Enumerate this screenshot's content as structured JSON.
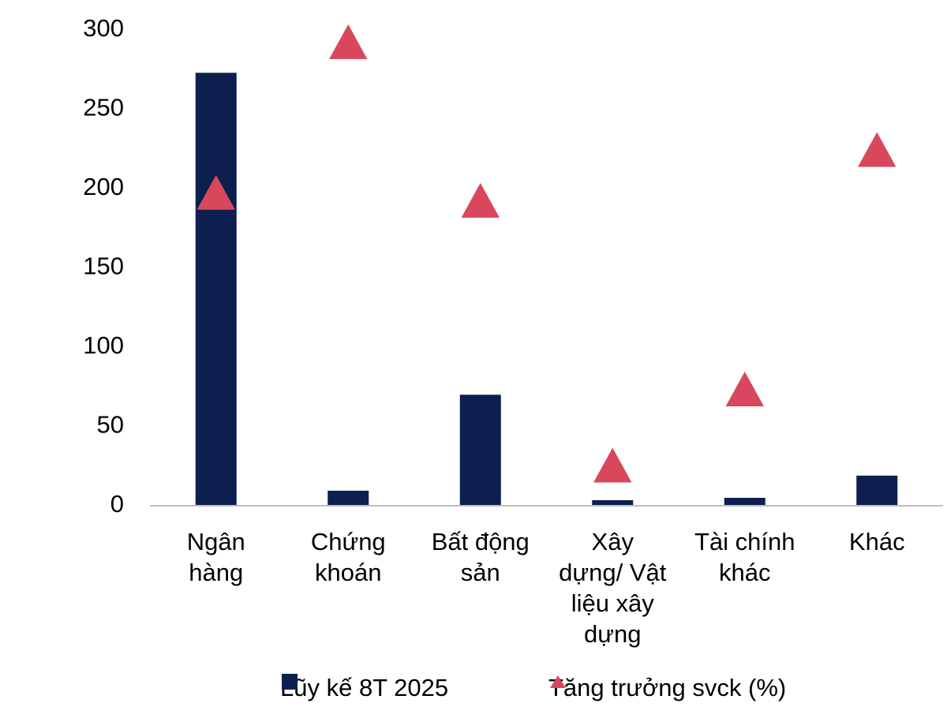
{
  "chart_data": {
    "type": "bar",
    "categories": [
      "Ngân hàng",
      "Chứng khoán",
      "Bất động sản",
      "Xây dựng/ Vật liệu xây dựng",
      "Tài chính khác",
      "Khác"
    ],
    "series": [
      {
        "name": "Lũy kế 8T 2025",
        "type": "bar",
        "color": "#0c1f4e",
        "values": [
          273,
          9.5,
          70,
          3.5,
          5,
          19
        ]
      },
      {
        "name": "Tăng trưởng svck (%)",
        "type": "scatter",
        "marker": "triangle",
        "color": "#d9475c",
        "values": [
          195,
          290,
          190,
          23,
          71,
          222
        ]
      }
    ],
    "ylim": [
      0,
      300
    ],
    "yticks": [
      0,
      50,
      100,
      150,
      200,
      250,
      300
    ],
    "grid": false
  }
}
